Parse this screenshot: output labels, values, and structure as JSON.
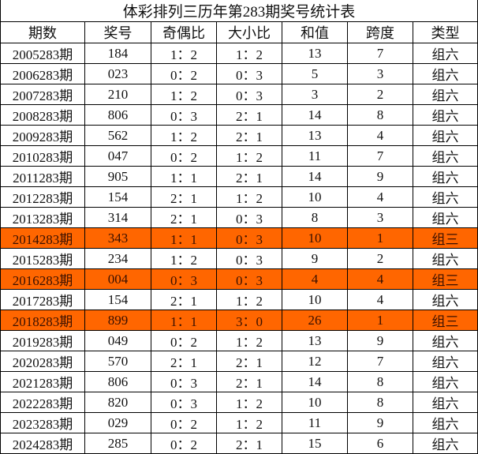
{
  "title": "体彩排列三历年第283期奖号统计表",
  "headers": [
    "期数",
    "奖号",
    "奇偶比",
    "大小比",
    "和值",
    "跨度",
    "类型"
  ],
  "highlight_color": "#FF6600",
  "rows": [
    {
      "period": "2005283期",
      "number": "184",
      "odd_even": "1：2",
      "big_small": "1：2",
      "sum": "13",
      "span": "7",
      "type": "组六",
      "highlight": false
    },
    {
      "period": "2006283期",
      "number": "023",
      "odd_even": "0：2",
      "big_small": "0：3",
      "sum": "5",
      "span": "3",
      "type": "组六",
      "highlight": false
    },
    {
      "period": "2007283期",
      "number": "210",
      "odd_even": "1：2",
      "big_small": "0：3",
      "sum": "3",
      "span": "2",
      "type": "组六",
      "highlight": false
    },
    {
      "period": "2008283期",
      "number": "806",
      "odd_even": "0：3",
      "big_small": "2：1",
      "sum": "14",
      "span": "8",
      "type": "组六",
      "highlight": false
    },
    {
      "period": "2009283期",
      "number": "562",
      "odd_even": "1：2",
      "big_small": "2：1",
      "sum": "13",
      "span": "4",
      "type": "组六",
      "highlight": false
    },
    {
      "period": "2010283期",
      "number": "047",
      "odd_even": "0：2",
      "big_small": "1：2",
      "sum": "11",
      "span": "7",
      "type": "组六",
      "highlight": false
    },
    {
      "period": "2011283期",
      "number": "905",
      "odd_even": "1：1",
      "big_small": "2：1",
      "sum": "14",
      "span": "9",
      "type": "组六",
      "highlight": false
    },
    {
      "period": "2012283期",
      "number": "154",
      "odd_even": "2：1",
      "big_small": "1：2",
      "sum": "10",
      "span": "4",
      "type": "组六",
      "highlight": false
    },
    {
      "period": "2013283期",
      "number": "314",
      "odd_even": "2：1",
      "big_small": "0：3",
      "sum": "8",
      "span": "3",
      "type": "组六",
      "highlight": false
    },
    {
      "period": "2014283期",
      "number": "343",
      "odd_even": "1：1",
      "big_small": "0：3",
      "sum": "10",
      "span": "1",
      "type": "组三",
      "highlight": true
    },
    {
      "period": "2015283期",
      "number": "234",
      "odd_even": "1：2",
      "big_small": "0：3",
      "sum": "9",
      "span": "2",
      "type": "组六",
      "highlight": false
    },
    {
      "period": "2016283期",
      "number": "004",
      "odd_even": "0：3",
      "big_small": "0：3",
      "sum": "4",
      "span": "4",
      "type": "组三",
      "highlight": true
    },
    {
      "period": "2017283期",
      "number": "154",
      "odd_even": "2：1",
      "big_small": "1：2",
      "sum": "10",
      "span": "4",
      "type": "组六",
      "highlight": false
    },
    {
      "period": "2018283期",
      "number": "899",
      "odd_even": "1：1",
      "big_small": "3：0",
      "sum": "26",
      "span": "1",
      "type": "组三",
      "highlight": true
    },
    {
      "period": "2019283期",
      "number": "049",
      "odd_even": "0：2",
      "big_small": "1：2",
      "sum": "13",
      "span": "9",
      "type": "组六",
      "highlight": false
    },
    {
      "period": "2020283期",
      "number": "570",
      "odd_even": "2：1",
      "big_small": "2：1",
      "sum": "12",
      "span": "7",
      "type": "组六",
      "highlight": false
    },
    {
      "period": "2021283期",
      "number": "806",
      "odd_even": "0：3",
      "big_small": "2：1",
      "sum": "14",
      "span": "8",
      "type": "组六",
      "highlight": false
    },
    {
      "period": "2022283期",
      "number": "820",
      "odd_even": "0：3",
      "big_small": "1：2",
      "sum": "10",
      "span": "8",
      "type": "组六",
      "highlight": false
    },
    {
      "period": "2023283期",
      "number": "029",
      "odd_even": "0：2",
      "big_small": "1：2",
      "sum": "11",
      "span": "9",
      "type": "组六",
      "highlight": false
    },
    {
      "period": "2024283期",
      "number": "285",
      "odd_even": "0：2",
      "big_small": "2：1",
      "sum": "15",
      "span": "6",
      "type": "组六",
      "highlight": false
    }
  ]
}
